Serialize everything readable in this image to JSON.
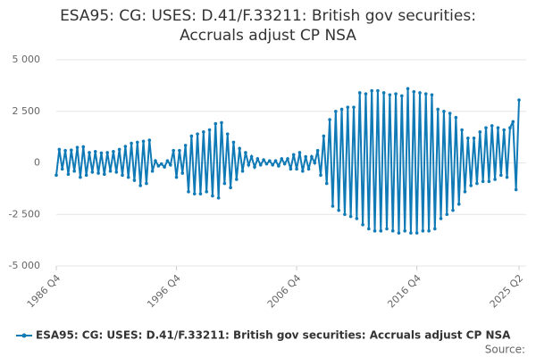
{
  "chart_data": {
    "type": "line",
    "title": "ESA95: CG: USES: D.41/F.33211: British gov securities: Accruals adjust CP NSA",
    "source": "Source:",
    "categories": [
      "1986 Q4",
      null,
      null,
      null,
      null,
      null,
      null,
      null,
      null,
      null,
      null,
      null,
      null,
      null,
      null,
      null,
      null,
      null,
      null,
      null,
      null,
      null,
      null,
      null,
      null,
      null,
      null,
      null,
      null,
      null,
      null,
      null,
      null,
      null,
      null,
      null,
      null,
      null,
      null,
      null,
      "1996 Q4",
      null,
      null,
      null,
      null,
      null,
      null,
      null,
      null,
      null,
      null,
      null,
      null,
      null,
      null,
      null,
      null,
      null,
      null,
      null,
      null,
      null,
      null,
      null,
      null,
      null,
      null,
      null,
      null,
      null,
      null,
      null,
      null,
      null,
      null,
      null,
      null,
      null,
      null,
      null,
      "2006 Q4",
      null,
      null,
      null,
      null,
      null,
      null,
      null,
      null,
      null,
      null,
      null,
      null,
      null,
      null,
      null,
      null,
      null,
      null,
      null,
      null,
      null,
      null,
      null,
      null,
      null,
      null,
      null,
      null,
      null,
      null,
      null,
      null,
      null,
      null,
      null,
      null,
      null,
      null,
      null,
      "2016 Q4",
      null,
      null,
      null,
      null,
      null,
      null,
      null,
      null,
      null,
      null,
      null,
      null,
      null,
      null,
      null,
      null,
      null,
      null,
      null,
      null,
      null,
      null,
      null,
      null,
      null,
      null,
      null,
      null,
      null,
      null,
      null,
      null,
      null,
      "2025 Q2"
    ],
    "series": [
      {
        "name": "ESA95: CG: USES: D.41/F.33211: British gov securities: Accruals adjust CP NSA",
        "color": "#0f7ab6",
        "values": [
          -600,
          650,
          -300,
          600,
          -550,
          620,
          -400,
          750,
          -700,
          780,
          -600,
          500,
          -450,
          550,
          -500,
          480,
          -550,
          500,
          -400,
          550,
          -450,
          650,
          -600,
          800,
          -700,
          950,
          -850,
          1000,
          -1100,
          1050,
          -1000,
          1100,
          -400,
          100,
          -150,
          -50,
          -200,
          100,
          -100,
          600,
          -700,
          600,
          -500,
          850,
          -1400,
          1300,
          -1500,
          1400,
          -1500,
          1500,
          -1400,
          1600,
          -1600,
          1900,
          -1700,
          1950,
          -1000,
          1400,
          -1200,
          1000,
          -800,
          700,
          -400,
          500,
          -100,
          300,
          -200,
          200,
          -100,
          150,
          -50,
          100,
          -100,
          100,
          -150,
          200,
          -50,
          200,
          -300,
          400,
          -300,
          500,
          -400,
          300,
          -300,
          300,
          0,
          600,
          -600,
          1300,
          -1000,
          2100,
          -2100,
          2500,
          -2300,
          2600,
          -2500,
          2700,
          -2600,
          2700,
          -2700,
          3400,
          -3000,
          3350,
          -3200,
          3500,
          -3300,
          3500,
          -3300,
          3400,
          -3200,
          3300,
          -3300,
          3350,
          -3400,
          3250,
          -3300,
          3600,
          -3400,
          3450,
          -3400,
          3400,
          -3300,
          3350,
          -3300,
          3300,
          -3200,
          2600,
          -2700,
          2500,
          -2500,
          2400,
          -2300,
          2200,
          -2000,
          1600,
          -1400,
          1200,
          -1100,
          1200,
          -1000,
          1500,
          -900,
          1700,
          -900,
          1800,
          -800,
          1700,
          -600,
          1600,
          -700,
          1700,
          2000,
          -1300,
          3050
        ]
      }
    ],
    "ylim": [
      -5000,
      5000
    ],
    "yticks": [
      {
        "value": 5000,
        "label": "5 000"
      },
      {
        "value": 2500,
        "label": "2 500"
      },
      0,
      {
        "value": -2500,
        "label": "-2 500"
      },
      {
        "value": -5000,
        "label": "-5 000"
      }
    ],
    "grid": true
  }
}
